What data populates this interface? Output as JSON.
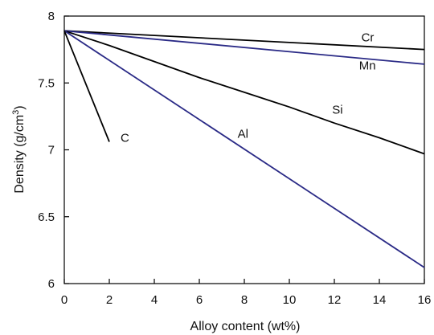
{
  "chart_data": {
    "type": "line",
    "xlabel": "Alloy content (wt%)",
    "ylabel_main": "Density (g/cm",
    "ylabel_sup": "3",
    "ylabel_end": ")",
    "xlim": [
      0,
      16
    ],
    "ylim": [
      6,
      8
    ],
    "xticks": [
      0,
      2,
      4,
      6,
      8,
      10,
      12,
      14,
      16
    ],
    "yticks": [
      6,
      6.5,
      7,
      7.5,
      8
    ],
    "grid": false,
    "legend": "none",
    "series": [
      {
        "name": "Cr",
        "color": "#000000",
        "x": [
          0,
          16
        ],
        "y": [
          7.89,
          7.75
        ],
        "label_at": [
          13.2,
          7.81
        ]
      },
      {
        "name": "Mn",
        "color": "#2a2a86",
        "x": [
          0,
          16
        ],
        "y": [
          7.89,
          7.64
        ],
        "label_at": [
          13.1,
          7.6
        ]
      },
      {
        "name": "Si",
        "color": "#000000",
        "x": [
          0,
          2,
          4,
          6,
          8,
          10,
          12,
          14,
          16
        ],
        "y": [
          7.89,
          7.78,
          7.66,
          7.54,
          7.43,
          7.32,
          7.2,
          7.09,
          6.97
        ],
        "label_at": [
          11.9,
          7.27
        ]
      },
      {
        "name": "Al",
        "color": "#2a2a86",
        "x": [
          0,
          16
        ],
        "y": [
          7.89,
          6.12
        ],
        "label_at": [
          7.7,
          7.09
        ]
      },
      {
        "name": "C",
        "color": "#000000",
        "x": [
          0,
          2
        ],
        "y": [
          7.89,
          7.06
        ],
        "label_at": [
          2.5,
          7.06
        ]
      }
    ]
  }
}
